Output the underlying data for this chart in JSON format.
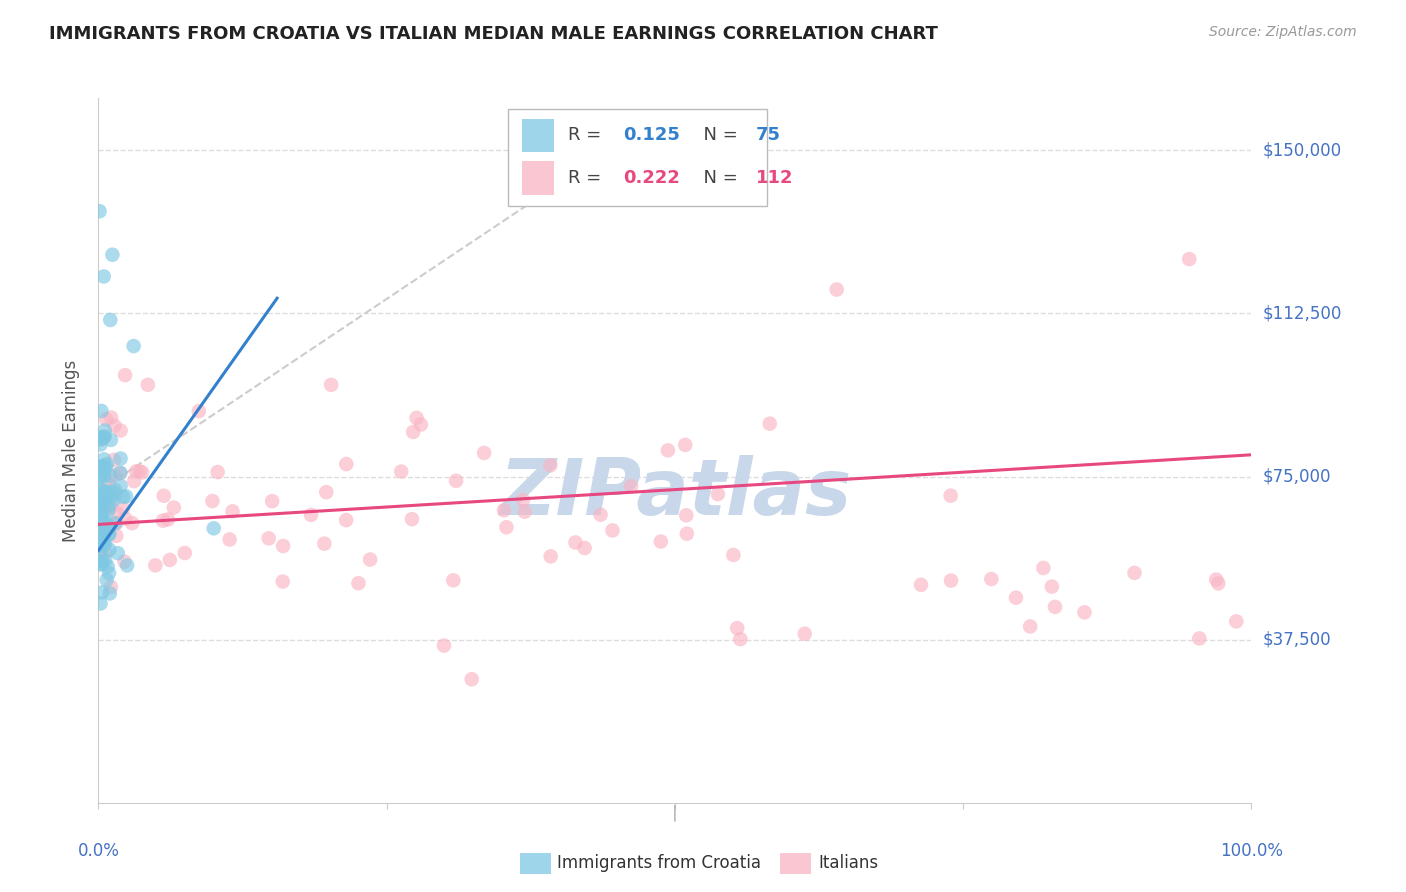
{
  "title": "IMMIGRANTS FROM CROATIA VS ITALIAN MEDIAN MALE EARNINGS CORRELATION CHART",
  "source": "Source: ZipAtlas.com",
  "ylabel": "Median Male Earnings",
  "ytick_vals": [
    37500,
    75000,
    112500,
    150000
  ],
  "ytick_labels": [
    "$37,500",
    "$75,000",
    "$112,500",
    "$150,000"
  ],
  "ylim": [
    0,
    162000
  ],
  "xlim": [
    0.0,
    1.0
  ],
  "legend_blue_R": "0.125",
  "legend_blue_N": "75",
  "legend_pink_R": "0.222",
  "legend_pink_N": "112",
  "legend_label_blue": "Immigrants from Croatia",
  "legend_label_pink": "Italians",
  "watermark": "ZIPatlas",
  "blue_color": "#7ec8e3",
  "blue_line_color": "#3380cc",
  "pink_color": "#f9b4c4",
  "pink_line_color": "#e84880",
  "dashed_line_color": "#cccccc",
  "title_color": "#222222",
  "axis_label_color": "#555555",
  "ytick_color": "#4472c4",
  "xtick_color": "#4472c4",
  "watermark_color": "#c8d8ea",
  "grid_color": "#dddddd"
}
